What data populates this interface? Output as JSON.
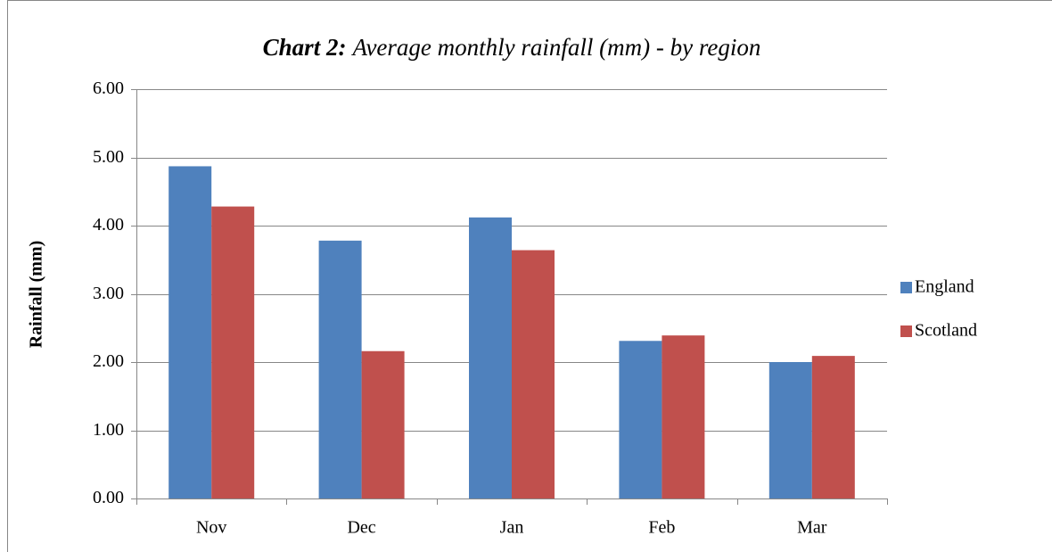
{
  "chart_data": {
    "type": "bar",
    "title_label": "Chart 2:",
    "title": "Average monthly rainfall (mm) - by region",
    "y_label": "Rainfall (mm)",
    "categories": [
      "Nov",
      "Dec",
      "Jan",
      "Feb",
      "Mar"
    ],
    "series": [
      {
        "name": "England",
        "color": "#4f81bd",
        "values": [
          4.87,
          3.78,
          4.12,
          2.31,
          2.0
        ]
      },
      {
        "name": "Scotland",
        "color": "#c0504d",
        "values": [
          4.28,
          2.16,
          3.64,
          2.39,
          2.09
        ]
      }
    ],
    "ylim": [
      0,
      6
    ],
    "yticks": [
      {
        "value": 0,
        "label": "0.00"
      },
      {
        "value": 1,
        "label": "1.00"
      },
      {
        "value": 2,
        "label": "2.00"
      },
      {
        "value": 3,
        "label": "3.00"
      },
      {
        "value": 4,
        "label": "4.00"
      },
      {
        "value": 5,
        "label": "5.00"
      },
      {
        "value": 6,
        "label": "6.00"
      }
    ],
    "grid": true,
    "legend": "right"
  }
}
